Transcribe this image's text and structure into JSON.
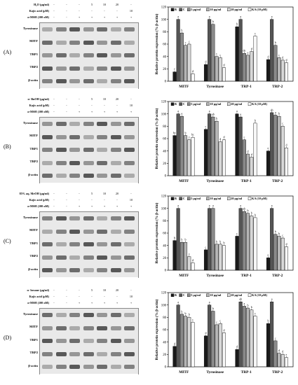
{
  "panels": [
    {
      "label": "(A)",
      "treatments": [
        {
          "name": "H₂O (μg/ml)",
          "values": [
            "-",
            "-",
            "-",
            "5",
            "10",
            "20",
            "-"
          ]
        },
        {
          "name": "Kojic acid (μM)",
          "values": [
            "-",
            "-",
            "-",
            "-",
            "-",
            "-",
            "10"
          ]
        },
        {
          "name": "α-MSH (100 nM)",
          "values": [
            "-",
            "-",
            "+",
            "+",
            "+",
            "+",
            "+"
          ]
        }
      ],
      "proteins": [
        "Tyrosinase",
        "MITF",
        "TRP1",
        "TRP2",
        "β-actin"
      ]
    },
    {
      "label": "(B)",
      "treatments": [
        {
          "name": "n- BuOH (μg/ml)",
          "values": [
            "-",
            "-",
            "-",
            "5",
            "10",
            "20",
            "-"
          ]
        },
        {
          "name": "Kojic acid (μM)",
          "values": [
            "-",
            "-",
            "-",
            "-",
            "-",
            "-",
            "10"
          ]
        },
        {
          "name": "α-MSH (100 nM)",
          "values": [
            "-",
            "-",
            "+",
            "+",
            "+",
            "+",
            "+"
          ]
        }
      ],
      "proteins": [
        "Tyrosinase",
        "MITF",
        "TRP1",
        "TRP2",
        "β-actin"
      ]
    },
    {
      "label": "(C)",
      "treatments": [
        {
          "name": "85% aq. MeOH (μg/ml)",
          "values": [
            "-",
            "-",
            "-",
            "5",
            "10",
            "20",
            "-"
          ]
        },
        {
          "name": "Kojic acid (μM)",
          "values": [
            "-",
            "-",
            "-",
            "-",
            "-",
            "-",
            "10"
          ]
        },
        {
          "name": "α-MSH (100 nM)",
          "values": [
            "-",
            "-",
            "+",
            "+",
            "+",
            "+",
            "+"
          ]
        }
      ],
      "proteins": [
        "Tyrosinase",
        "MITF",
        "TRP1",
        "TRP2",
        "β-actin"
      ]
    },
    {
      "label": "(D)",
      "treatments": [
        {
          "name": "n- hexane (μg/ml)",
          "values": [
            "-",
            "-",
            "-",
            "5",
            "10",
            "20",
            "-"
          ]
        },
        {
          "name": "Kojic acid (μM)",
          "values": [
            "-",
            "-",
            "-",
            "-",
            "-",
            "-",
            "10"
          ]
        },
        {
          "name": "α-MSH (100 nM)",
          "values": [
            "-",
            "-",
            "+",
            "+",
            "+",
            "+",
            "+"
          ]
        }
      ],
      "proteins": [
        "Tyrosinase",
        "MITF",
        "TRP1",
        "TRP2",
        "β-actin"
      ]
    }
  ],
  "chart_data": [
    {
      "type": "bar",
      "ylabel": "Relative protein expression (% β-actin)",
      "ylim": [
        0,
        120
      ],
      "yticks": [
        0,
        20,
        40,
        60,
        80,
        100,
        120
      ],
      "categories": [
        "MITF",
        "Tyrosinase",
        "TRP-1",
        "TRP-2"
      ],
      "legend": [
        "B",
        "C",
        "5 μg/ml",
        "10 μg/ml",
        "20 μg/ml",
        "KA (10 μM)"
      ],
      "series_colors": [
        "#1a1a1a",
        "#555555",
        "#8a8a8a",
        "#b5b5b5",
        "#d8d8d8",
        "#f7f7f7"
      ],
      "values": [
        [
          15,
          100,
          78,
          58,
          60,
          12
        ],
        [
          27,
          100,
          92,
          40,
          38,
          22
        ],
        [
          88,
          100,
          45,
          42,
          48,
          73
        ],
        [
          35,
          100,
          58,
          38,
          34,
          30
        ]
      ],
      "letters": [
        [
          "f",
          "a",
          "b",
          "c",
          "c",
          "d"
        ],
        [
          "d",
          "a",
          "b",
          "c",
          "c",
          "d"
        ],
        [
          "b",
          "a",
          "de",
          "e",
          "d",
          "c"
        ],
        [
          "d",
          "a",
          "b",
          "c",
          "d",
          "d"
        ]
      ]
    },
    {
      "type": "bar",
      "ylabel": "Relative protein expression (% β-actin)",
      "ylim": [
        0,
        120
      ],
      "yticks": [
        0,
        20,
        40,
        60,
        80,
        100,
        120
      ],
      "categories": [
        "MITF",
        "Tyrosinase",
        "TRP-1",
        "TRP-2"
      ],
      "legend": [
        "B",
        "C",
        "5 μg/ml",
        "10 μg/ml",
        "20 μg/ml",
        "KA (10 μM)"
      ],
      "series_colors": [
        "#1a1a1a",
        "#555555",
        "#8a8a8a",
        "#b5b5b5",
        "#d8d8d8",
        "#f7f7f7"
      ],
      "values": [
        [
          65,
          100,
          96,
          65,
          58,
          62
        ],
        [
          75,
          100,
          95,
          88,
          55,
          58
        ],
        [
          100,
          95,
          58,
          35,
          30,
          85
        ],
        [
          40,
          102,
          98,
          96,
          80,
          45
        ]
      ],
      "letters": [
        [
          "bc",
          "a",
          "a",
          "b",
          "c",
          "bc"
        ],
        [
          "c",
          "a",
          "ab",
          "b",
          "d",
          "d"
        ],
        [
          "a",
          "a",
          "c",
          "d",
          "d",
          "b"
        ],
        [
          "e",
          "ab",
          "a",
          "b",
          "c",
          "d"
        ]
      ]
    },
    {
      "type": "bar",
      "ylabel": "Relative protein expression (% β-actin)",
      "ylim": [
        0,
        120
      ],
      "yticks": [
        0,
        20,
        40,
        60,
        80,
        100,
        120
      ],
      "categories": [
        "MITF",
        "Tyrosinase",
        "TRP-1",
        "TRP-2"
      ],
      "legend": [
        "B",
        "C",
        "5 μg/ml",
        "10 μg/ml",
        "20 μg/ml",
        "KA (10 μM)"
      ],
      "series_colors": [
        "#1a1a1a",
        "#555555",
        "#8a8a8a",
        "#b5b5b5",
        "#d8d8d8",
        "#f7f7f7"
      ],
      "values": [
        [
          48,
          100,
          45,
          45,
          22,
          12
        ],
        [
          33,
          100,
          100,
          42,
          42,
          40
        ],
        [
          55,
          100,
          95,
          92,
          88,
          85
        ],
        [
          20,
          100,
          58,
          55,
          52,
          38
        ]
      ],
      "letters": [
        [
          "b",
          "a",
          "b",
          "b",
          "c",
          "d"
        ],
        [
          "c",
          "a",
          "a",
          "b",
          "b",
          "b"
        ],
        [
          "c",
          "a",
          "ab",
          "b",
          "b",
          "b"
        ],
        [
          "e",
          "a",
          "b",
          "b",
          "c",
          "d"
        ]
      ]
    },
    {
      "type": "bar",
      "ylabel": "Relative protein expression (% β-actin)",
      "ylim": [
        0,
        120
      ],
      "yticks": [
        0,
        20,
        40,
        60,
        80,
        100,
        120
      ],
      "categories": [
        "MITF",
        "Tyrosinase",
        "TRP-1",
        "TRP-2"
      ],
      "legend": [
        "B",
        "C",
        "5 μg/ml",
        "10 μg/ml",
        "20 μg/ml",
        "KA (10 μM)"
      ],
      "series_colors": [
        "#1a1a1a",
        "#555555",
        "#8a8a8a",
        "#b5b5b5",
        "#d8d8d8",
        "#f7f7f7"
      ],
      "values": [
        [
          33,
          100,
          85,
          82,
          80,
          72
        ],
        [
          50,
          100,
          90,
          68,
          70,
          55
        ],
        [
          28,
          105,
          98,
          95,
          92,
          82
        ],
        [
          70,
          105,
          42,
          22,
          20,
          15
        ]
      ],
      "letters": [
        [
          "d",
          "a",
          "b",
          "b",
          "b",
          "c"
        ],
        [
          "d",
          "a",
          "b",
          "c",
          "c",
          "d"
        ],
        [
          "d",
          "ab",
          "a",
          "b",
          "b",
          "c"
        ],
        [
          "b",
          "a",
          "c",
          "d",
          "d",
          "e"
        ]
      ]
    }
  ]
}
